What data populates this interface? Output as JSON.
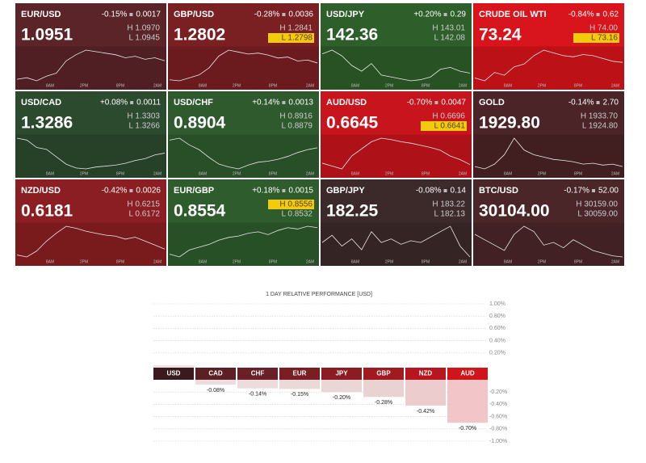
{
  "time_labels": [
    "8AM",
    "2PM",
    "8PM",
    "2AM"
  ],
  "tiles": [
    {
      "name": "EUR/USD",
      "change": "-0.15%",
      "delta": "0.0017",
      "price": "1.0951",
      "high": "H 1.0970",
      "low": "L 1.0945",
      "highlight": null,
      "color": "#5a2428",
      "spark": [
        1.0946,
        1.0947,
        1.0945,
        1.0948,
        1.095,
        1.0958,
        1.0962,
        1.0965,
        1.0964,
        1.0963,
        1.0962,
        1.096,
        1.0961,
        1.0959,
        1.096,
        1.0958
      ]
    },
    {
      "name": "GBP/USD",
      "change": "-0.28%",
      "delta": "0.0036",
      "price": "1.2802",
      "high": "H 1.2841",
      "low": "L 1.2798",
      "highlight": "low",
      "color": "#7a1f22",
      "spark": [
        1.28,
        1.2799,
        1.2802,
        1.2805,
        1.2812,
        1.2824,
        1.283,
        1.2828,
        1.2826,
        1.2827,
        1.2825,
        1.2822,
        1.2823,
        1.2819,
        1.282,
        1.2817
      ]
    },
    {
      "name": "USD/JPY",
      "change": "+0.20%",
      "delta": "0.29",
      "price": "142.36",
      "high": "H 143.01",
      "low": "L 142.08",
      "highlight": null,
      "color": "#2e5e2a",
      "spark": [
        142.85,
        142.95,
        142.8,
        142.55,
        142.4,
        142.6,
        142.3,
        142.25,
        142.2,
        142.15,
        142.18,
        142.25,
        142.45,
        142.5,
        142.4,
        142.35
      ]
    },
    {
      "name": "CRUDE OIL WTI",
      "change": "-0.84%",
      "delta": "0.62",
      "price": "73.24",
      "high": "H 74.00",
      "low": "L 73.16",
      "highlight": "low",
      "color": "#d8141c",
      "spark": [
        73.3,
        73.25,
        73.4,
        73.35,
        73.5,
        73.55,
        73.7,
        73.8,
        73.75,
        73.7,
        73.68,
        73.72,
        73.7,
        73.65,
        73.6,
        73.58
      ]
    },
    {
      "name": "USD/CAD",
      "change": "+0.08%",
      "delta": "0.0011",
      "price": "1.3286",
      "high": "H 1.3303",
      "low": "L 1.3266",
      "highlight": null,
      "color": "#2c4a2e",
      "spark": [
        1.33,
        1.3298,
        1.329,
        1.3288,
        1.328,
        1.3272,
        1.3268,
        1.3267,
        1.3269,
        1.327,
        1.3271,
        1.3273,
        1.3276,
        1.3278,
        1.3282,
        1.3284
      ]
    },
    {
      "name": "USD/CHF",
      "change": "+0.14%",
      "delta": "0.0013",
      "price": "0.8904",
      "high": "H 0.8916",
      "low": "L 0.8879",
      "highlight": null,
      "color": "#2f5a2e",
      "spark": [
        0.891,
        0.8912,
        0.8905,
        0.89,
        0.8892,
        0.8885,
        0.8882,
        0.888,
        0.8884,
        0.8887,
        0.8888,
        0.889,
        0.8893,
        0.8897,
        0.89,
        0.8902
      ]
    },
    {
      "name": "AUD/USD",
      "change": "-0.70%",
      "delta": "0.0047",
      "price": "0.6645",
      "high": "H 0.6696",
      "low": "L 0.6641",
      "highlight": "low",
      "color": "#c8141c",
      "spark": [
        0.665,
        0.6646,
        0.6642,
        0.666,
        0.667,
        0.668,
        0.6685,
        0.6683,
        0.668,
        0.6678,
        0.6675,
        0.6672,
        0.6668,
        0.666,
        0.6655,
        0.6648
      ]
    },
    {
      "name": "GOLD",
      "change": "-0.14%",
      "delta": "2.70",
      "price": "1929.80",
      "high": "H 1933.70",
      "low": "L 1924.80",
      "highlight": null,
      "color": "#4a2426",
      "spark": [
        1925.5,
        1925.0,
        1926.0,
        1928.0,
        1931.5,
        1929.0,
        1928.0,
        1927.5,
        1927.0,
        1926.8,
        1926.5,
        1926.0,
        1926.2,
        1925.8,
        1926.0,
        1925.5
      ]
    },
    {
      "name": "NZD/USD",
      "change": "-0.42%",
      "delta": "0.0026",
      "price": "0.6181",
      "high": "H 0.6215",
      "low": "L 0.6172",
      "highlight": null,
      "color": "#8a1e22",
      "spark": [
        0.6176,
        0.6174,
        0.618,
        0.619,
        0.6198,
        0.6205,
        0.6203,
        0.62,
        0.6198,
        0.6196,
        0.6195,
        0.6192,
        0.6194,
        0.619,
        0.6186,
        0.6182
      ]
    },
    {
      "name": "EUR/GBP",
      "change": "+0.18%",
      "delta": "0.0015",
      "price": "0.8554",
      "high": "H 0.8556",
      "low": "L 0.8532",
      "highlight": "high",
      "color": "#2e5c2c",
      "spark": [
        0.8535,
        0.8533,
        0.8538,
        0.854,
        0.8542,
        0.8545,
        0.8547,
        0.8548,
        0.855,
        0.8551,
        0.8549,
        0.8552,
        0.8554,
        0.8553,
        0.8555,
        0.8554
      ]
    },
    {
      "name": "GBP/JPY",
      "change": "-0.08%",
      "delta": "0.14",
      "price": "182.25",
      "high": "H 183.22",
      "low": "L 182.13",
      "highlight": null,
      "color": "#3c2a2a",
      "spark": [
        182.6,
        182.8,
        182.5,
        182.7,
        182.4,
        182.9,
        182.6,
        182.7,
        182.55,
        182.65,
        182.6,
        182.75,
        182.9,
        183.05,
        182.5,
        182.2
      ]
    },
    {
      "name": "BTC/USD",
      "change": "-0.17%",
      "delta": "52.00",
      "price": "30104.00",
      "high": "H 30159.00",
      "low": "L 30059.00",
      "highlight": null,
      "color": "#4a2628",
      "spark": [
        30120,
        30110,
        30100,
        30090,
        30120,
        30135,
        30125,
        30100,
        30105,
        30095,
        30110,
        30100,
        30090,
        30085,
        30080,
        30078
      ]
    }
  ],
  "chart_data": {
    "type": "bar",
    "title": "1 DAY RELATIVE PERFORMANCE [USD]",
    "categories": [
      "USD",
      "CAD",
      "CHF",
      "EUR",
      "JPY",
      "GBP",
      "NZD",
      "AUD"
    ],
    "values": [
      0,
      -0.08,
      -0.14,
      -0.15,
      -0.2,
      -0.28,
      -0.42,
      -0.7
    ],
    "value_labels": [
      null,
      "-0.08%",
      "-0.14%",
      "-0.15%",
      "-0.20%",
      "-0.28%",
      "-0.42%",
      "-0.70%"
    ],
    "header_colors": [
      "#3a1a1c",
      "#5a2026",
      "#6a2028",
      "#7a1e24",
      "#8a1c22",
      "#a01a20",
      "#b8161e",
      "#d0141c"
    ],
    "bar_colors": [
      "#eee4e4",
      "#ecdede",
      "#ecdcdc",
      "#ebd9d9",
      "#ead6d6",
      "#e9d2d2",
      "#eccccc",
      "#f2c6c8"
    ],
    "ylim": [
      -1,
      1
    ],
    "yticks": [
      {
        "value": 1,
        "label": "1.00%"
      },
      {
        "value": 0.8,
        "label": "0.80%"
      },
      {
        "value": 0.6,
        "label": "0.60%"
      },
      {
        "value": 0.4,
        "label": "0.40%"
      },
      {
        "value": 0.2,
        "label": "0.20%"
      },
      {
        "value": -0.2,
        "label": "-0.20%"
      },
      {
        "value": -0.4,
        "label": "-0.40%"
      },
      {
        "value": -0.6,
        "label": "-0.60%"
      },
      {
        "value": -0.8,
        "label": "-0.80%"
      },
      {
        "value": -1,
        "label": "-1.00%"
      }
    ],
    "grid": true
  }
}
